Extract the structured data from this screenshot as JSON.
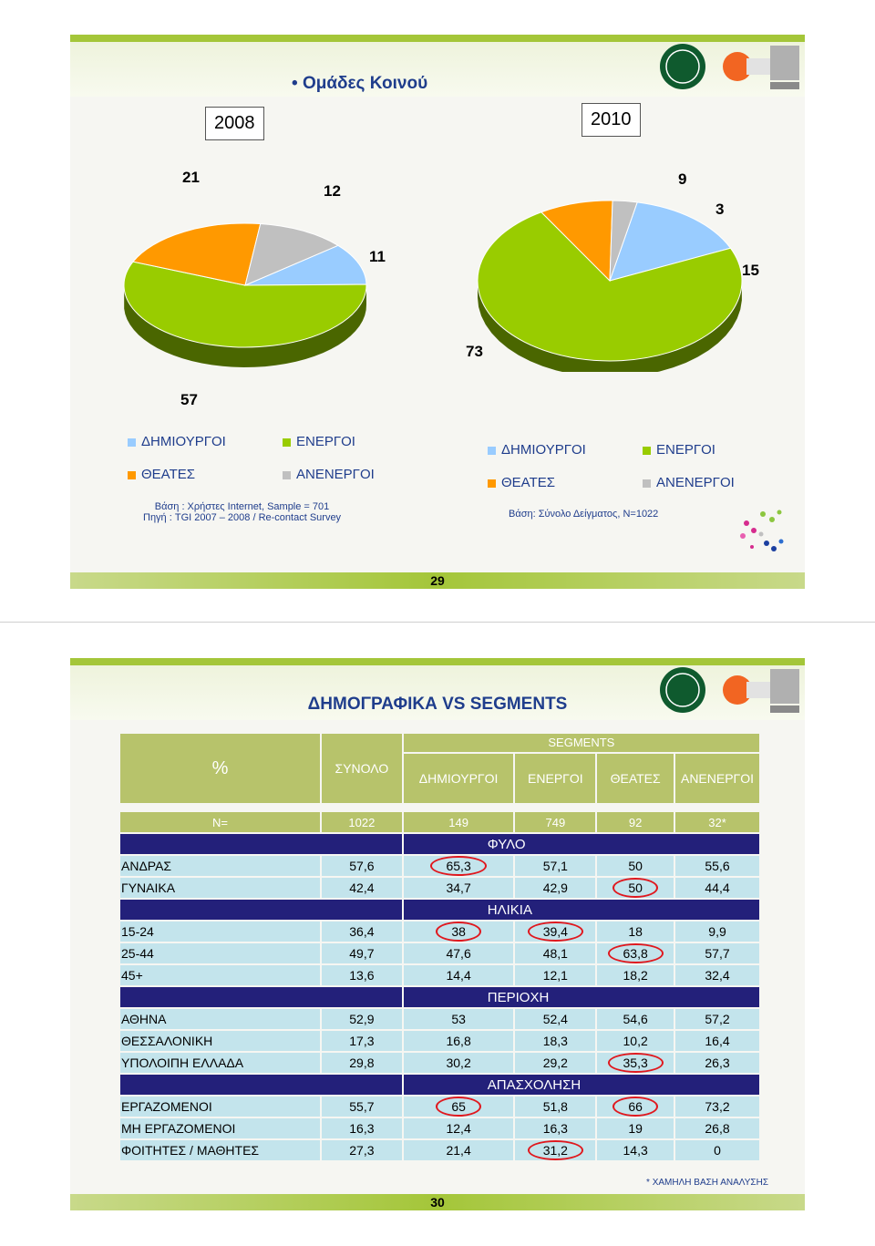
{
  "slide1": {
    "title": "Ομάδες Κοινού",
    "page_number": "29",
    "note_2008": {
      "line1": "Βάση : Χρήστες Internet, Sample = 701",
      "line2": "Πηγή : TGI 2007 – 2008 / Re-contact Survey"
    },
    "note_2010": "Βάση: Σύνολο Δείγματος, N=1022"
  },
  "colors": {
    "creators": "#99ccff",
    "active": "#99cc00",
    "viewers": "#ff9900",
    "inactive": "#c0c0c0",
    "header_green": "#b7c36b",
    "section_navy": "#23207a",
    "row_cyan": "#c3e4ec",
    "highlight_red": "#e0181e"
  },
  "chart_data": [
    {
      "type": "pie",
      "title": "2008",
      "categories": [
        "ΔΗΜΙΟΥΡΓΟΙ",
        "ΕΝΕΡΓΟΙ",
        "ΘΕΑΤΕΣ",
        "ΑΝΕΝΕΡΓΟΙ"
      ],
      "values": [
        11,
        57,
        21,
        12
      ],
      "legend": [
        "ΔΗΜΙΟΥΡΓΟΙ",
        "ΕΝΕΡΓΟΙ",
        "ΘΕΑΤΕΣ",
        "ΑΝΕΝΕΡΓΟΙ"
      ]
    },
    {
      "type": "pie",
      "title": "2010",
      "categories": [
        "ΔΗΜΙΟΥΡΓΟΙ",
        "ΕΝΕΡΓΟΙ",
        "ΘΕΑΤΕΣ",
        "ΑΝΕΝΕΡΓΟΙ"
      ],
      "values": [
        15,
        73,
        9,
        3
      ],
      "legend": [
        "ΔΗΜΙΟΥΡΓΟΙ",
        "ΕΝΕΡΓΟΙ",
        "ΘΕΑΤΕΣ",
        "ΑΝΕΝΕΡΓΟΙ"
      ]
    },
    {
      "type": "table",
      "title": "ΔΗΜΟΓΡΑΦΙΚΑ VS SEGMENTS",
      "corner": "%",
      "total_header": "ΣΥΝΟΛΟ",
      "group_header": "SEGMENTS",
      "segment_headers": [
        "ΔΗΜΙΟΥΡΓΟΙ",
        "ΕΝΕΡΓΟΙ",
        "ΘΕΑΤΕΣ",
        "ΑΝΕΝΕΡΓΟΙ"
      ],
      "n_label": "N=",
      "n_values": [
        "1022",
        "149",
        "749",
        "92",
        "32*"
      ],
      "sections": [
        {
          "title": "ΦΥΛΟ",
          "rows": [
            {
              "label": "ΑΝΔΡΑΣ",
              "values": [
                "57,6",
                "65,3",
                "57,1",
                "50",
                "55,6"
              ],
              "circled": [
                1
              ]
            },
            {
              "label": "ΓΥΝΑΙΚΑ",
              "values": [
                "42,4",
                "34,7",
                "42,9",
                "50",
                "44,4"
              ],
              "circled": [
                3
              ]
            }
          ]
        },
        {
          "title": "ΗΛΙΚΙΑ",
          "rows": [
            {
              "label": "15-24",
              "values": [
                "36,4",
                "38",
                "39,4",
                "18",
                "9,9"
              ],
              "circled": [
                1,
                2
              ]
            },
            {
              "label": "25-44",
              "values": [
                "49,7",
                "47,6",
                "48,1",
                "63,8",
                "57,7"
              ],
              "circled": [
                3
              ]
            },
            {
              "label": "45+",
              "values": [
                "13,6",
                "14,4",
                "12,1",
                "18,2",
                "32,4"
              ],
              "circled": []
            }
          ]
        },
        {
          "title": "ΠΕΡΙΟΧΗ",
          "rows": [
            {
              "label": "ΑΘΗΝΑ",
              "values": [
                "52,9",
                "53",
                "52,4",
                "54,6",
                "57,2"
              ],
              "circled": []
            },
            {
              "label": "ΘΕΣΣΑΛΟΝΙΚΗ",
              "values": [
                "17,3",
                "16,8",
                "18,3",
                "10,2",
                "16,4"
              ],
              "circled": []
            },
            {
              "label": "ΥΠΟΛΟΙΠΗ ΕΛΛΑΔΑ",
              "values": [
                "29,8",
                "30,2",
                "29,2",
                "35,3",
                "26,3"
              ],
              "circled": [
                3
              ]
            }
          ]
        },
        {
          "title": "ΑΠΑΣΧΟΛΗΣΗ",
          "rows": [
            {
              "label": "ΕΡΓΑΖΟΜΕΝΟΙ",
              "values": [
                "55,7",
                "65",
                "51,8",
                "66",
                "73,2"
              ],
              "circled": [
                1,
                3
              ]
            },
            {
              "label": "ΜΗ ΕΡΓΑΖΟΜΕΝΟΙ",
              "values": [
                "16,3",
                "12,4",
                "16,3",
                "19",
                "26,8"
              ],
              "circled": []
            },
            {
              "label": "ΦΟΙΤΗΤΕΣ / ΜΑΘΗΤΕΣ",
              "values": [
                "27,3",
                "21,4",
                "31,2",
                "14,3",
                "0"
              ],
              "circled": [
                2
              ]
            }
          ]
        }
      ],
      "footnote": "* ΧΑΜΗΛΗ ΒΑΣΗ ΑΝΑΛΥΣΗΣ"
    }
  ],
  "slide2": {
    "page_number": "30"
  }
}
